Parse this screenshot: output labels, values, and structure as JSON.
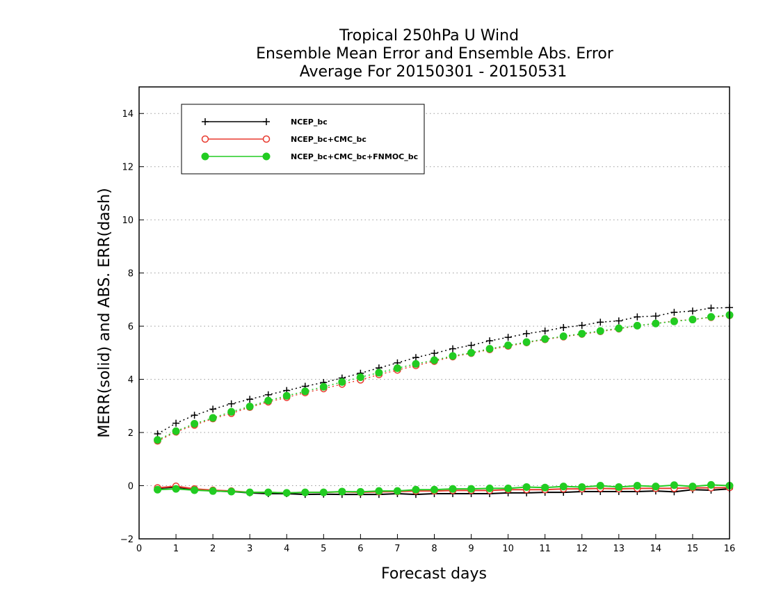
{
  "chart_data": {
    "type": "line",
    "title": [
      "Tropical 250hPa U Wind",
      "Ensemble Mean Error and Ensemble Abs. Error",
      "Average For 20150301 - 20150531"
    ],
    "xlabel": "Forecast days",
    "ylabel": "MERR(solid) and ABS. ERR(dash)",
    "xlim": [
      0,
      16
    ],
    "ylim": [
      -2,
      15
    ],
    "x_ticks": [
      "0",
      "1",
      "2",
      "3",
      "4",
      "5",
      "6",
      "7",
      "8",
      "9",
      "10",
      "11",
      "12",
      "13",
      "14",
      "15",
      "16"
    ],
    "y_ticks": [
      "−2",
      "0",
      "2",
      "4",
      "6",
      "8",
      "10",
      "12",
      "14"
    ],
    "grid": "horizontal dotted",
    "legend_position": "top-left",
    "x": [
      0.5,
      1,
      1.5,
      2,
      2.5,
      3,
      3.5,
      4,
      4.5,
      5,
      5.5,
      6,
      6.5,
      7,
      7.5,
      8,
      8.5,
      9,
      9.5,
      10,
      10.5,
      11,
      11.5,
      12,
      12.5,
      13,
      13.5,
      14,
      14.5,
      15,
      15.5,
      16
    ],
    "series": [
      {
        "name": "NCEP_bc",
        "color": "#000000",
        "marker": "plus",
        "merr": [
          -0.1,
          -0.05,
          -0.15,
          -0.2,
          -0.22,
          -0.27,
          -0.3,
          -0.3,
          -0.33,
          -0.32,
          -0.33,
          -0.33,
          -0.33,
          -0.3,
          -0.33,
          -0.3,
          -0.3,
          -0.3,
          -0.3,
          -0.27,
          -0.27,
          -0.25,
          -0.25,
          -0.22,
          -0.22,
          -0.22,
          -0.22,
          -0.2,
          -0.23,
          -0.15,
          -0.17,
          -0.12
        ],
        "abs_err": [
          1.95,
          2.35,
          2.65,
          2.88,
          3.08,
          3.25,
          3.42,
          3.58,
          3.74,
          3.88,
          4.05,
          4.23,
          4.43,
          4.62,
          4.82,
          4.98,
          5.15,
          5.28,
          5.45,
          5.58,
          5.72,
          5.82,
          5.95,
          6.03,
          6.15,
          6.2,
          6.35,
          6.38,
          6.52,
          6.57,
          6.68,
          6.7
        ]
      },
      {
        "name": "NCEP_bc+CMC_bc",
        "color": "#e8392e",
        "marker": "open-circle",
        "merr": [
          -0.08,
          -0.02,
          -0.12,
          -0.17,
          -0.2,
          -0.25,
          -0.25,
          -0.27,
          -0.25,
          -0.25,
          -0.23,
          -0.25,
          -0.23,
          -0.22,
          -0.2,
          -0.2,
          -0.18,
          -0.18,
          -0.18,
          -0.15,
          -0.15,
          -0.15,
          -0.12,
          -0.12,
          -0.1,
          -0.12,
          -0.1,
          -0.1,
          -0.1,
          -0.08,
          -0.08,
          -0.07
        ],
        "abs_err": [
          1.68,
          2.02,
          2.28,
          2.52,
          2.72,
          2.95,
          3.15,
          3.32,
          3.5,
          3.65,
          3.82,
          3.98,
          4.18,
          4.35,
          4.52,
          4.68,
          4.85,
          4.98,
          5.12,
          5.25,
          5.38,
          5.5,
          5.6,
          5.7,
          5.8,
          5.9,
          6.02,
          6.1,
          6.2,
          6.25,
          6.33,
          6.4
        ]
      },
      {
        "name": "NCEP_bc+CMC_bc+FNMOC_bc",
        "color": "#22cc22",
        "marker": "filled-circle",
        "merr": [
          -0.15,
          -0.12,
          -0.17,
          -0.2,
          -0.22,
          -0.25,
          -0.25,
          -0.27,
          -0.25,
          -0.25,
          -0.22,
          -0.23,
          -0.2,
          -0.2,
          -0.15,
          -0.15,
          -0.12,
          -0.12,
          -0.1,
          -0.1,
          -0.05,
          -0.07,
          -0.03,
          -0.05,
          0.0,
          -0.05,
          0.0,
          -0.03,
          0.02,
          -0.03,
          0.03,
          0.0
        ],
        "abs_err": [
          1.72,
          2.05,
          2.33,
          2.55,
          2.78,
          2.98,
          3.2,
          3.38,
          3.55,
          3.72,
          3.9,
          4.08,
          4.25,
          4.42,
          4.58,
          4.72,
          4.88,
          5.0,
          5.15,
          5.28,
          5.4,
          5.52,
          5.62,
          5.72,
          5.82,
          5.92,
          6.02,
          6.1,
          6.18,
          6.25,
          6.35,
          6.42
        ]
      }
    ]
  }
}
